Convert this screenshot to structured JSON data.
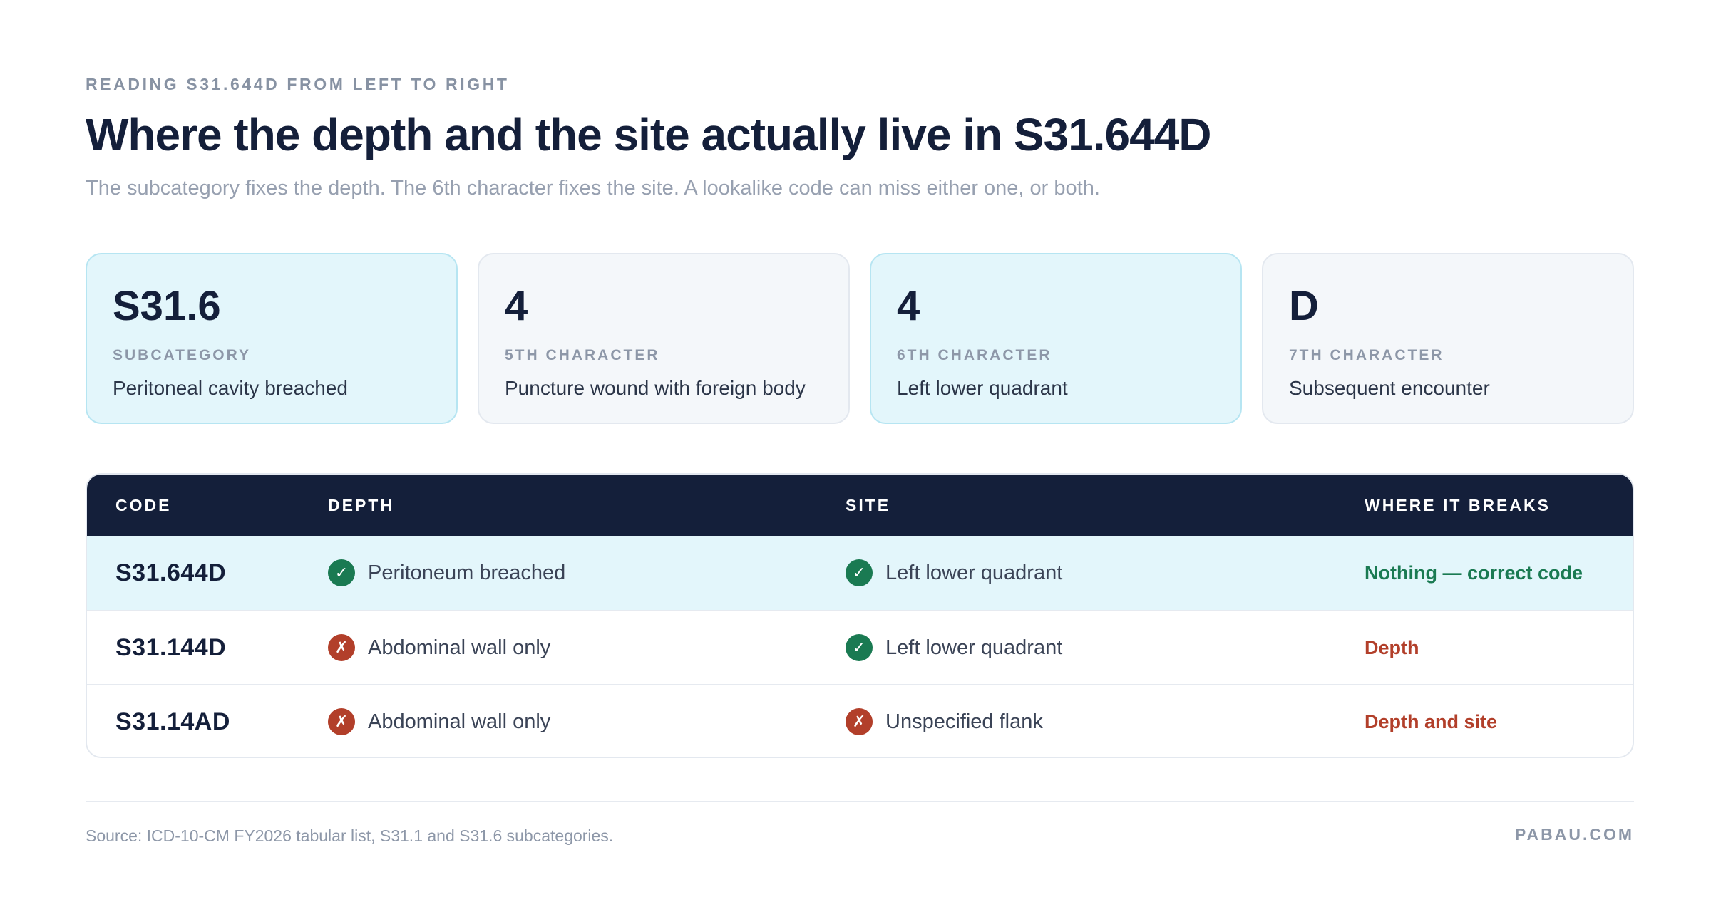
{
  "header": {
    "eyebrow": "READING S31.644D FROM LEFT TO RIGHT",
    "title": "Where the depth and the site actually live in S31.644D",
    "subtitle": "The subcategory fixes the depth. The 6th character fixes the site. A lookalike code can miss either one, or both."
  },
  "cards": [
    {
      "value": "S31.6",
      "label": "SUBCATEGORY",
      "desc": "Peritoneal cavity breached",
      "highlighted": true
    },
    {
      "value": "4",
      "label": "5TH CHARACTER",
      "desc": "Puncture wound with foreign body",
      "highlighted": false
    },
    {
      "value": "4",
      "label": "6TH CHARACTER",
      "desc": "Left lower quadrant",
      "highlighted": true
    },
    {
      "value": "D",
      "label": "7TH CHARACTER",
      "desc": "Subsequent encounter",
      "highlighted": false
    }
  ],
  "table": {
    "headers": [
      "CODE",
      "DEPTH",
      "SITE",
      "WHERE IT BREAKS"
    ],
    "rows": [
      {
        "code": "S31.644D",
        "depth": "Peritoneum breached",
        "depth_status": "ok",
        "site": "Left lower quadrant",
        "site_status": "ok",
        "breaks": "Nothing — correct code",
        "breaks_status": "ok",
        "highlighted": true
      },
      {
        "code": "S31.144D",
        "depth": "Abdominal wall only",
        "depth_status": "bad",
        "site": "Left lower quadrant",
        "site_status": "ok",
        "breaks": "Depth",
        "breaks_status": "bad",
        "highlighted": false
      },
      {
        "code": "S31.14AD",
        "depth": "Abdominal wall only",
        "depth_status": "bad",
        "site": "Unspecified flank",
        "site_status": "bad",
        "breaks": "Depth and site",
        "breaks_status": "bad",
        "highlighted": false
      }
    ],
    "icons": {
      "ok": "✓",
      "bad": "✗"
    }
  },
  "footer": {
    "source": "Source: ICD-10-CM FY2026 tabular list, S31.1 and S31.6 subcategories.",
    "brand": "PABAU.COM"
  },
  "colors": {
    "navy": "#141f3a",
    "highlight_bg": "#e3f6fb",
    "ok_green": "#1a7a52",
    "bad_red": "#b23f2a"
  }
}
